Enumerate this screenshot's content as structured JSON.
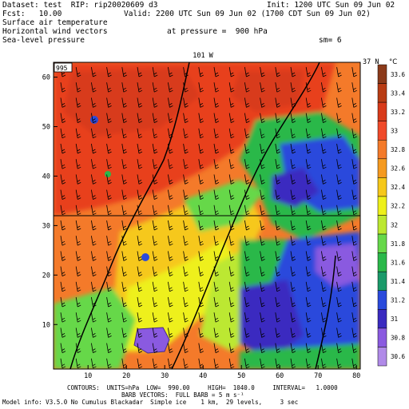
{
  "header": {
    "dataset_line": "Dataset: test  RIP: rip20020609 d3",
    "init": "Init: 1200 UTC Sun 09 Jun 02",
    "fcst": "Fcst:   10.00",
    "valid": "Valid: 2200 UTC Sun 09 Jun 02 (1700 CDT Sun 09 Jun 02)",
    "field1": "Surface air temperature",
    "field2": "Horizontal wind vectors",
    "pressure": "at pressure =  900 hPa",
    "field3": "Sea-level pressure",
    "sm": "sm= 6"
  },
  "map": {
    "top_label": "101 W",
    "right_label": "37 N",
    "corner_box": "995",
    "x_ticks": [
      "10",
      "20",
      "30",
      "40",
      "50",
      "60",
      "70",
      "80"
    ],
    "y_ticks": [
      "10",
      "20",
      "30",
      "40",
      "50",
      "60"
    ]
  },
  "colorbar": {
    "unit": "°C",
    "labels": [
      "33.6",
      "33.4",
      "33.2",
      "33",
      "32.8",
      "32.6",
      "32.4",
      "32.2",
      "32",
      "31.8",
      "31.6",
      "31.4",
      "31.2",
      "31",
      "30.8",
      "30.6"
    ],
    "colors": [
      "#8b3a1a",
      "#b83c14",
      "#d83a1a",
      "#f04a2a",
      "#f47a2a",
      "#f59a20",
      "#f6c81a",
      "#eef01a",
      "#bce830",
      "#66d84a",
      "#2ab84a",
      "#1a9a6a",
      "#2a4adc",
      "#3a2ac0",
      "#8a5ae0",
      "#b08ae8"
    ]
  },
  "footer": {
    "contours": "CONTOURS:  UNITS=hPa  LOW=  990.00     HIGH=  1040.0     INTERVAL=   1.0000",
    "barbs": "BARB VECTORS:  FULL BARB = 5 m s⁻¹",
    "model_info": "Model info: V3.5.0 No Cumulus Blackadar  Simple ice    1 km,  29 levels,     3 sec"
  }
}
